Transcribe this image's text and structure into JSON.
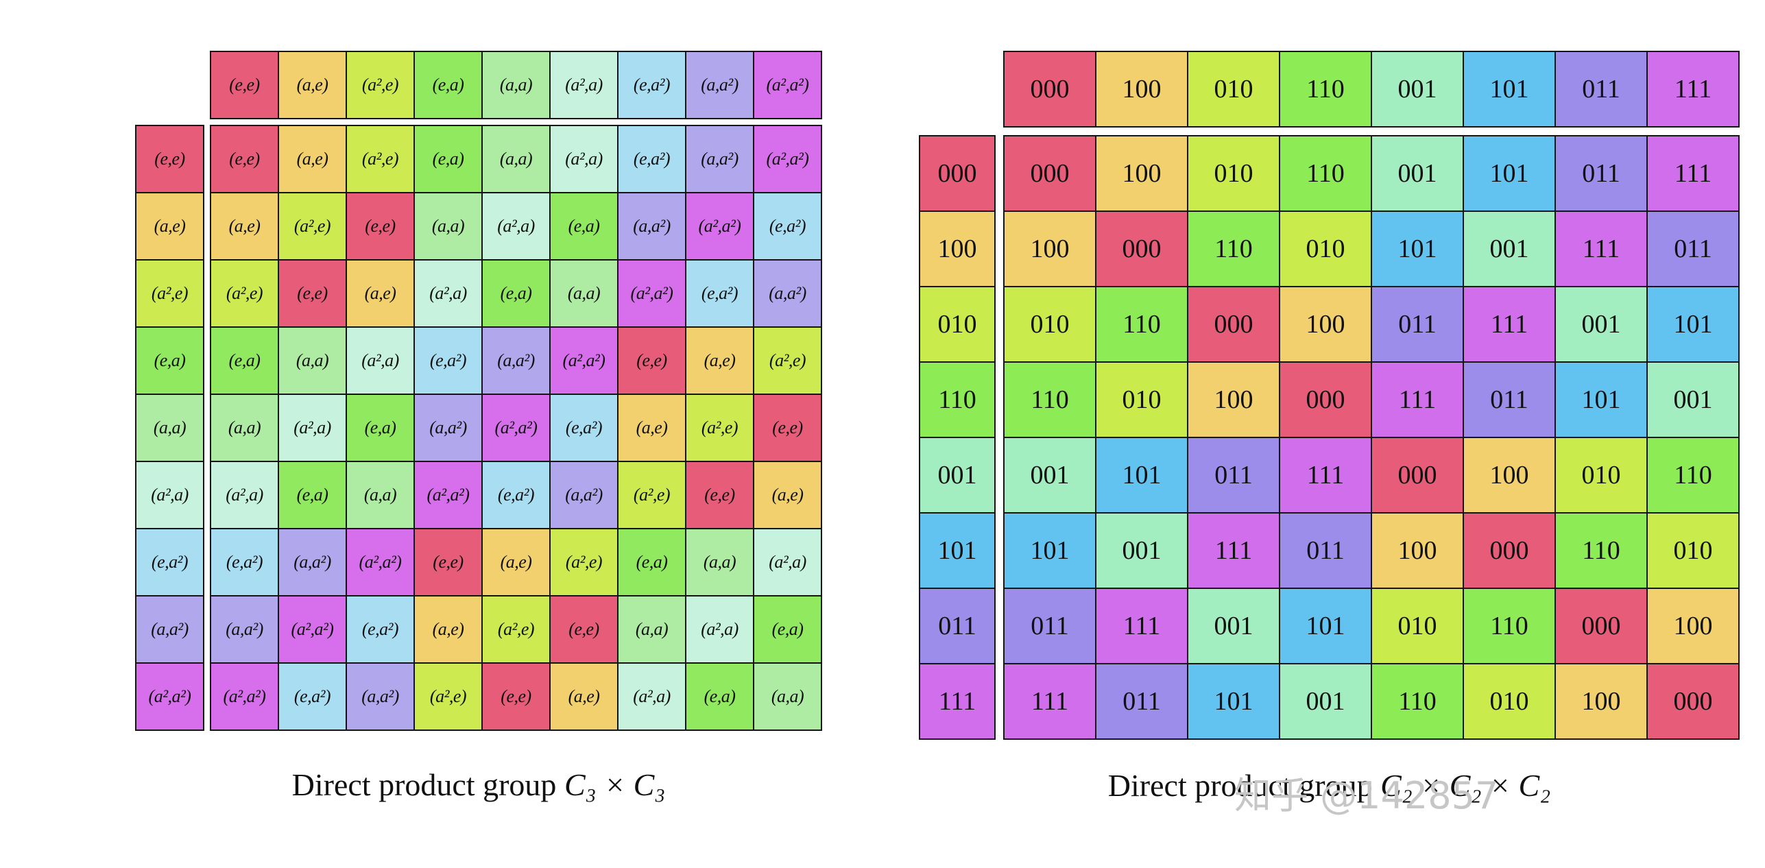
{
  "watermark": {
    "text": "知乎 @142857",
    "color": "#c6c6c6"
  },
  "tables": [
    {
      "name": "c3-x-c3",
      "caption": {
        "prefix": "Direct product group ",
        "math": "C₃ × C₃"
      },
      "elements": [
        {
          "label": "(e,e)",
          "color": "#e75d79"
        },
        {
          "label": "(a,e)",
          "color": "#f2d06e"
        },
        {
          "label": "(a²,e)",
          "color": "#cdeb50"
        },
        {
          "label": "(e,a)",
          "color": "#90e95e"
        },
        {
          "label": "(a,a)",
          "color": "#aeeba3"
        },
        {
          "label": "(a²,a)",
          "color": "#c6f2de"
        },
        {
          "label": "(e,a²)",
          "color": "#a9def2"
        },
        {
          "label": "(a,a²)",
          "color": "#b1a7ec"
        },
        {
          "label": "(a²,a²)",
          "color": "#d76fec"
        }
      ],
      "col_headers": [
        0,
        1,
        2,
        3,
        4,
        5,
        6,
        7,
        8
      ],
      "row_headers": [
        0,
        1,
        2,
        3,
        4,
        5,
        6,
        7,
        8
      ],
      "grid": [
        [
          0,
          1,
          2,
          3,
          4,
          5,
          6,
          7,
          8
        ],
        [
          1,
          2,
          0,
          4,
          5,
          3,
          7,
          8,
          6
        ],
        [
          2,
          0,
          1,
          5,
          3,
          4,
          8,
          6,
          7
        ],
        [
          3,
          4,
          5,
          6,
          7,
          8,
          0,
          1,
          2
        ],
        [
          4,
          5,
          3,
          7,
          8,
          6,
          1,
          2,
          0
        ],
        [
          5,
          3,
          4,
          8,
          6,
          7,
          2,
          0,
          1
        ],
        [
          6,
          7,
          8,
          0,
          1,
          2,
          3,
          4,
          5
        ],
        [
          7,
          8,
          6,
          1,
          2,
          0,
          4,
          5,
          3
        ],
        [
          8,
          6,
          7,
          2,
          0,
          1,
          5,
          3,
          4
        ]
      ]
    },
    {
      "name": "c2-x-c2-x-c2",
      "caption": {
        "prefix": "Direct product group ",
        "math": "C₂ × C₂ × C₂"
      },
      "elements": [
        {
          "label": "000",
          "color": "#e75d79"
        },
        {
          "label": "100",
          "color": "#f2d06e"
        },
        {
          "label": "010",
          "color": "#c9eb4c"
        },
        {
          "label": "110",
          "color": "#8deb55"
        },
        {
          "label": "001",
          "color": "#a3eec0"
        },
        {
          "label": "101",
          "color": "#63c3f0"
        },
        {
          "label": "011",
          "color": "#9c8deb"
        },
        {
          "label": "111",
          "color": "#d06eec"
        }
      ],
      "col_headers": [
        0,
        1,
        2,
        3,
        4,
        5,
        6,
        7
      ],
      "row_headers": [
        0,
        1,
        2,
        3,
        4,
        5,
        6,
        7
      ],
      "grid": [
        [
          0,
          1,
          2,
          3,
          4,
          5,
          6,
          7
        ],
        [
          1,
          0,
          3,
          2,
          5,
          4,
          7,
          6
        ],
        [
          2,
          3,
          0,
          1,
          6,
          7,
          4,
          5
        ],
        [
          3,
          2,
          1,
          0,
          7,
          6,
          5,
          4
        ],
        [
          4,
          5,
          6,
          7,
          0,
          1,
          2,
          3
        ],
        [
          5,
          4,
          7,
          6,
          1,
          0,
          3,
          2
        ],
        [
          6,
          7,
          4,
          5,
          2,
          3,
          0,
          1
        ],
        [
          7,
          6,
          5,
          4,
          3,
          2,
          1,
          0
        ]
      ]
    }
  ]
}
